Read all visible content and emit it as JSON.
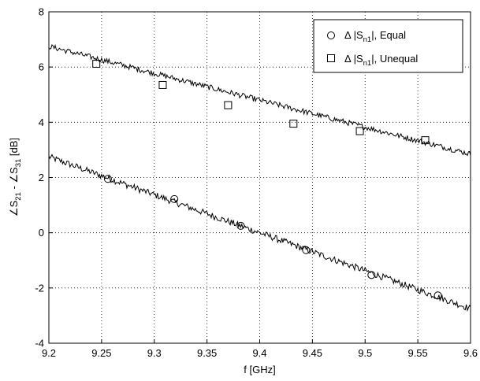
{
  "chart_data": {
    "type": "scatter",
    "xlabel": "f [GHz]",
    "ylabel": {
      "main": "∠S",
      "sub1": "21",
      "mid": " - ∠S",
      "sub2": "31",
      "unit": " [dB]"
    },
    "xlim": [
      9.2,
      9.6
    ],
    "ylim": [
      -4,
      8
    ],
    "x_ticks": [
      "9.2",
      "9.25",
      "9.3",
      "9.35",
      "9.4",
      "9.45",
      "9.5",
      "9.55",
      "9.6"
    ],
    "y_ticks": [
      "-4",
      "-2",
      "0",
      "2",
      "4",
      "6",
      "8"
    ],
    "grid": "dotted",
    "legend_position": "top-right",
    "legend": [
      {
        "marker": "circle",
        "delta": "Δ",
        "text_pre": " |S",
        "text_sub": "n1",
        "text_post": "|, Equal"
      },
      {
        "marker": "square",
        "delta": "Δ",
        "text_pre": " |S",
        "text_sub": "n1",
        "text_post": "|, Unequal"
      }
    ],
    "series": [
      {
        "marker": "circle",
        "x": [
          9.256,
          9.319,
          9.382,
          9.444,
          9.506,
          9.569
        ],
        "y": [
          1.95,
          1.22,
          0.25,
          -0.63,
          -1.53,
          -2.27
        ]
      },
      {
        "marker": "square",
        "x": [
          9.245,
          9.308,
          9.37,
          9.432,
          9.495,
          9.557
        ],
        "y": [
          6.12,
          5.35,
          4.62,
          3.95,
          3.68,
          3.35
        ]
      }
    ],
    "lines": [
      {
        "x_start": 9.2,
        "x_end": 9.6,
        "y_start": 2.75,
        "y_end": -2.75,
        "noise": 0.12
      },
      {
        "x_start": 9.2,
        "x_end": 9.6,
        "y_start": 6.75,
        "y_end": 2.85,
        "noise": 0.1
      }
    ]
  }
}
